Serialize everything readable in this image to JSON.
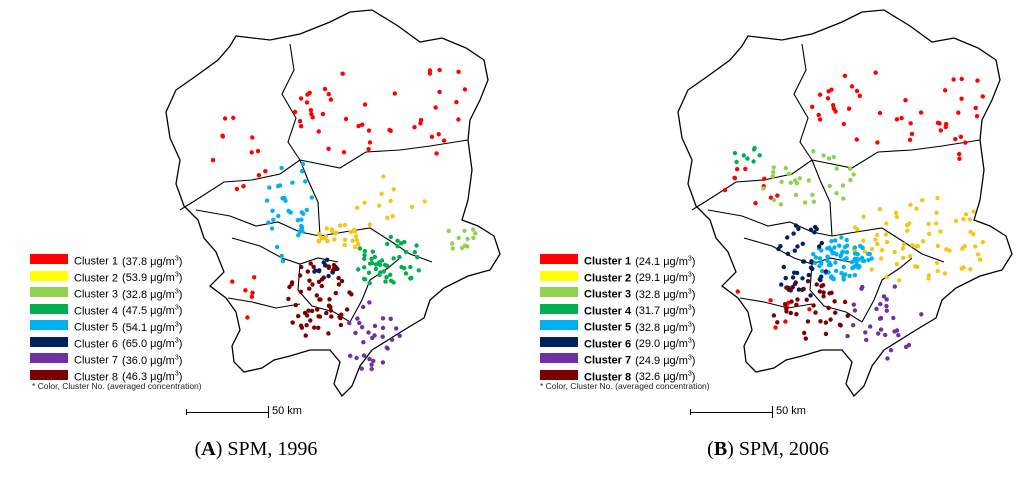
{
  "panels": [
    {
      "id": "a",
      "letter": "A",
      "caption_rest": ") SPM, 1996",
      "legend": [
        {
          "name": "Cluster 1",
          "value": "(37.8 μg/m",
          "unit_sup": "3",
          "tail": ")",
          "color": "#ff0000"
        },
        {
          "name": "Cluster 2",
          "value": "(53.9 μg/m",
          "unit_sup": "3",
          "tail": ")",
          "color": "#ffff00"
        },
        {
          "name": "Cluster 3",
          "value": "(32.8 μg/m",
          "unit_sup": "3",
          "tail": ")",
          "color": "#92d050"
        },
        {
          "name": "Cluster 4",
          "value": "(47.5 μg/m",
          "unit_sup": "3",
          "tail": ")",
          "color": "#00b050"
        },
        {
          "name": "Cluster 5",
          "value": "(54.1 μg/m",
          "unit_sup": "3",
          "tail": ")",
          "color": "#00b0f0"
        },
        {
          "name": "Cluster 6",
          "value": "(65.0 μg/m",
          "unit_sup": "3",
          "tail": ")",
          "color": "#002060"
        },
        {
          "name": "Cluster 7",
          "value": "(36.0 μg/m",
          "unit_sup": "3",
          "tail": ")",
          "color": "#7030a0"
        },
        {
          "name": "Cluster 8",
          "value": "(46.3 μg/m",
          "unit_sup": "3",
          "tail": ")",
          "color": "#7b0000"
        }
      ],
      "footnote": "* Color,  Cluster No. (averaged concentration)",
      "scale_label": "50 km"
    },
    {
      "id": "b",
      "letter": "B",
      "caption_rest": ") SPM, 2006",
      "legend": [
        {
          "name": "Cluster 1",
          "value": "(24.1 μg/m",
          "unit_sup": "3",
          "tail": ")",
          "color": "#ff0000"
        },
        {
          "name": "Cluster 2",
          "value": "(29.1 μg/m",
          "unit_sup": "3",
          "tail": ")",
          "color": "#ffff00"
        },
        {
          "name": "Cluster 3",
          "value": "(32.8 μg/m",
          "unit_sup": "3",
          "tail": ")",
          "color": "#92d050"
        },
        {
          "name": "Cluster 4",
          "value": "(31.7 μg/m",
          "unit_sup": "3",
          "tail": ")",
          "color": "#00b050"
        },
        {
          "name": "Cluster 5",
          "value": "(32.8 μg/m",
          "unit_sup": "3",
          "tail": ")",
          "color": "#00b0f0"
        },
        {
          "name": "Cluster 6",
          "value": "(29.0 μg/m",
          "unit_sup": "3",
          "tail": ")",
          "color": "#002060"
        },
        {
          "name": "Cluster 7",
          "value": "(24.9 μg/m",
          "unit_sup": "3",
          "tail": ")",
          "color": "#7030a0"
        },
        {
          "name": "Cluster 8",
          "value": "(32.6 μg/m",
          "unit_sup": "3",
          "tail": ")",
          "color": "#7b0000"
        }
      ],
      "footnote": "* Color,  Cluster No. (averaged concentration)",
      "scale_label": "50 km"
    }
  ],
  "colors": {
    "boundary": "#000000",
    "dot_yellow": "#f5c518",
    "dot_red": "#ff0000"
  }
}
